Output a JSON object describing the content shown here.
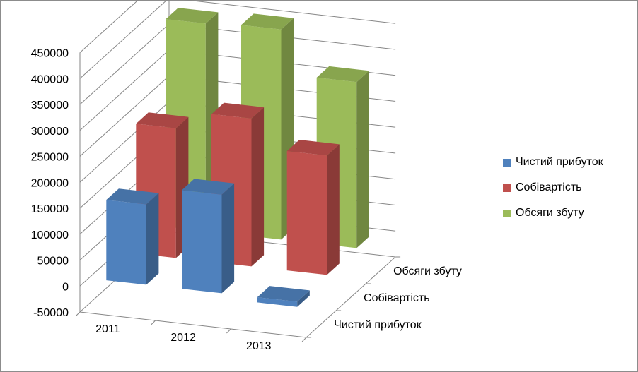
{
  "chart_data": {
    "type": "bar",
    "title": "",
    "categories": [
      "2011",
      "2012",
      "2013"
    ],
    "series": [
      {
        "name": "Чистий прибуток",
        "values": [
          155000,
          190000,
          -10000
        ],
        "color": "#4f81bd"
      },
      {
        "name": "Собівартість",
        "values": [
          250000,
          285000,
          230000
        ],
        "color": "#c0504d"
      },
      {
        "name": "Обсяги збуту",
        "values": [
          400000,
          405000,
          320000
        ],
        "color": "#9bbb59"
      }
    ],
    "ylim": [
      -50000,
      450000
    ],
    "yticks": [
      "450000",
      "400000",
      "350000",
      "300000",
      "250000",
      "200000",
      "150000",
      "100000",
      "50000",
      "0",
      "-50000"
    ],
    "depth_labels": [
      "Обсяги збуту",
      "Собівартість",
      "Чистий прибуток"
    ],
    "gridlines": true,
    "legend_position": "right",
    "style": "3d-column"
  }
}
